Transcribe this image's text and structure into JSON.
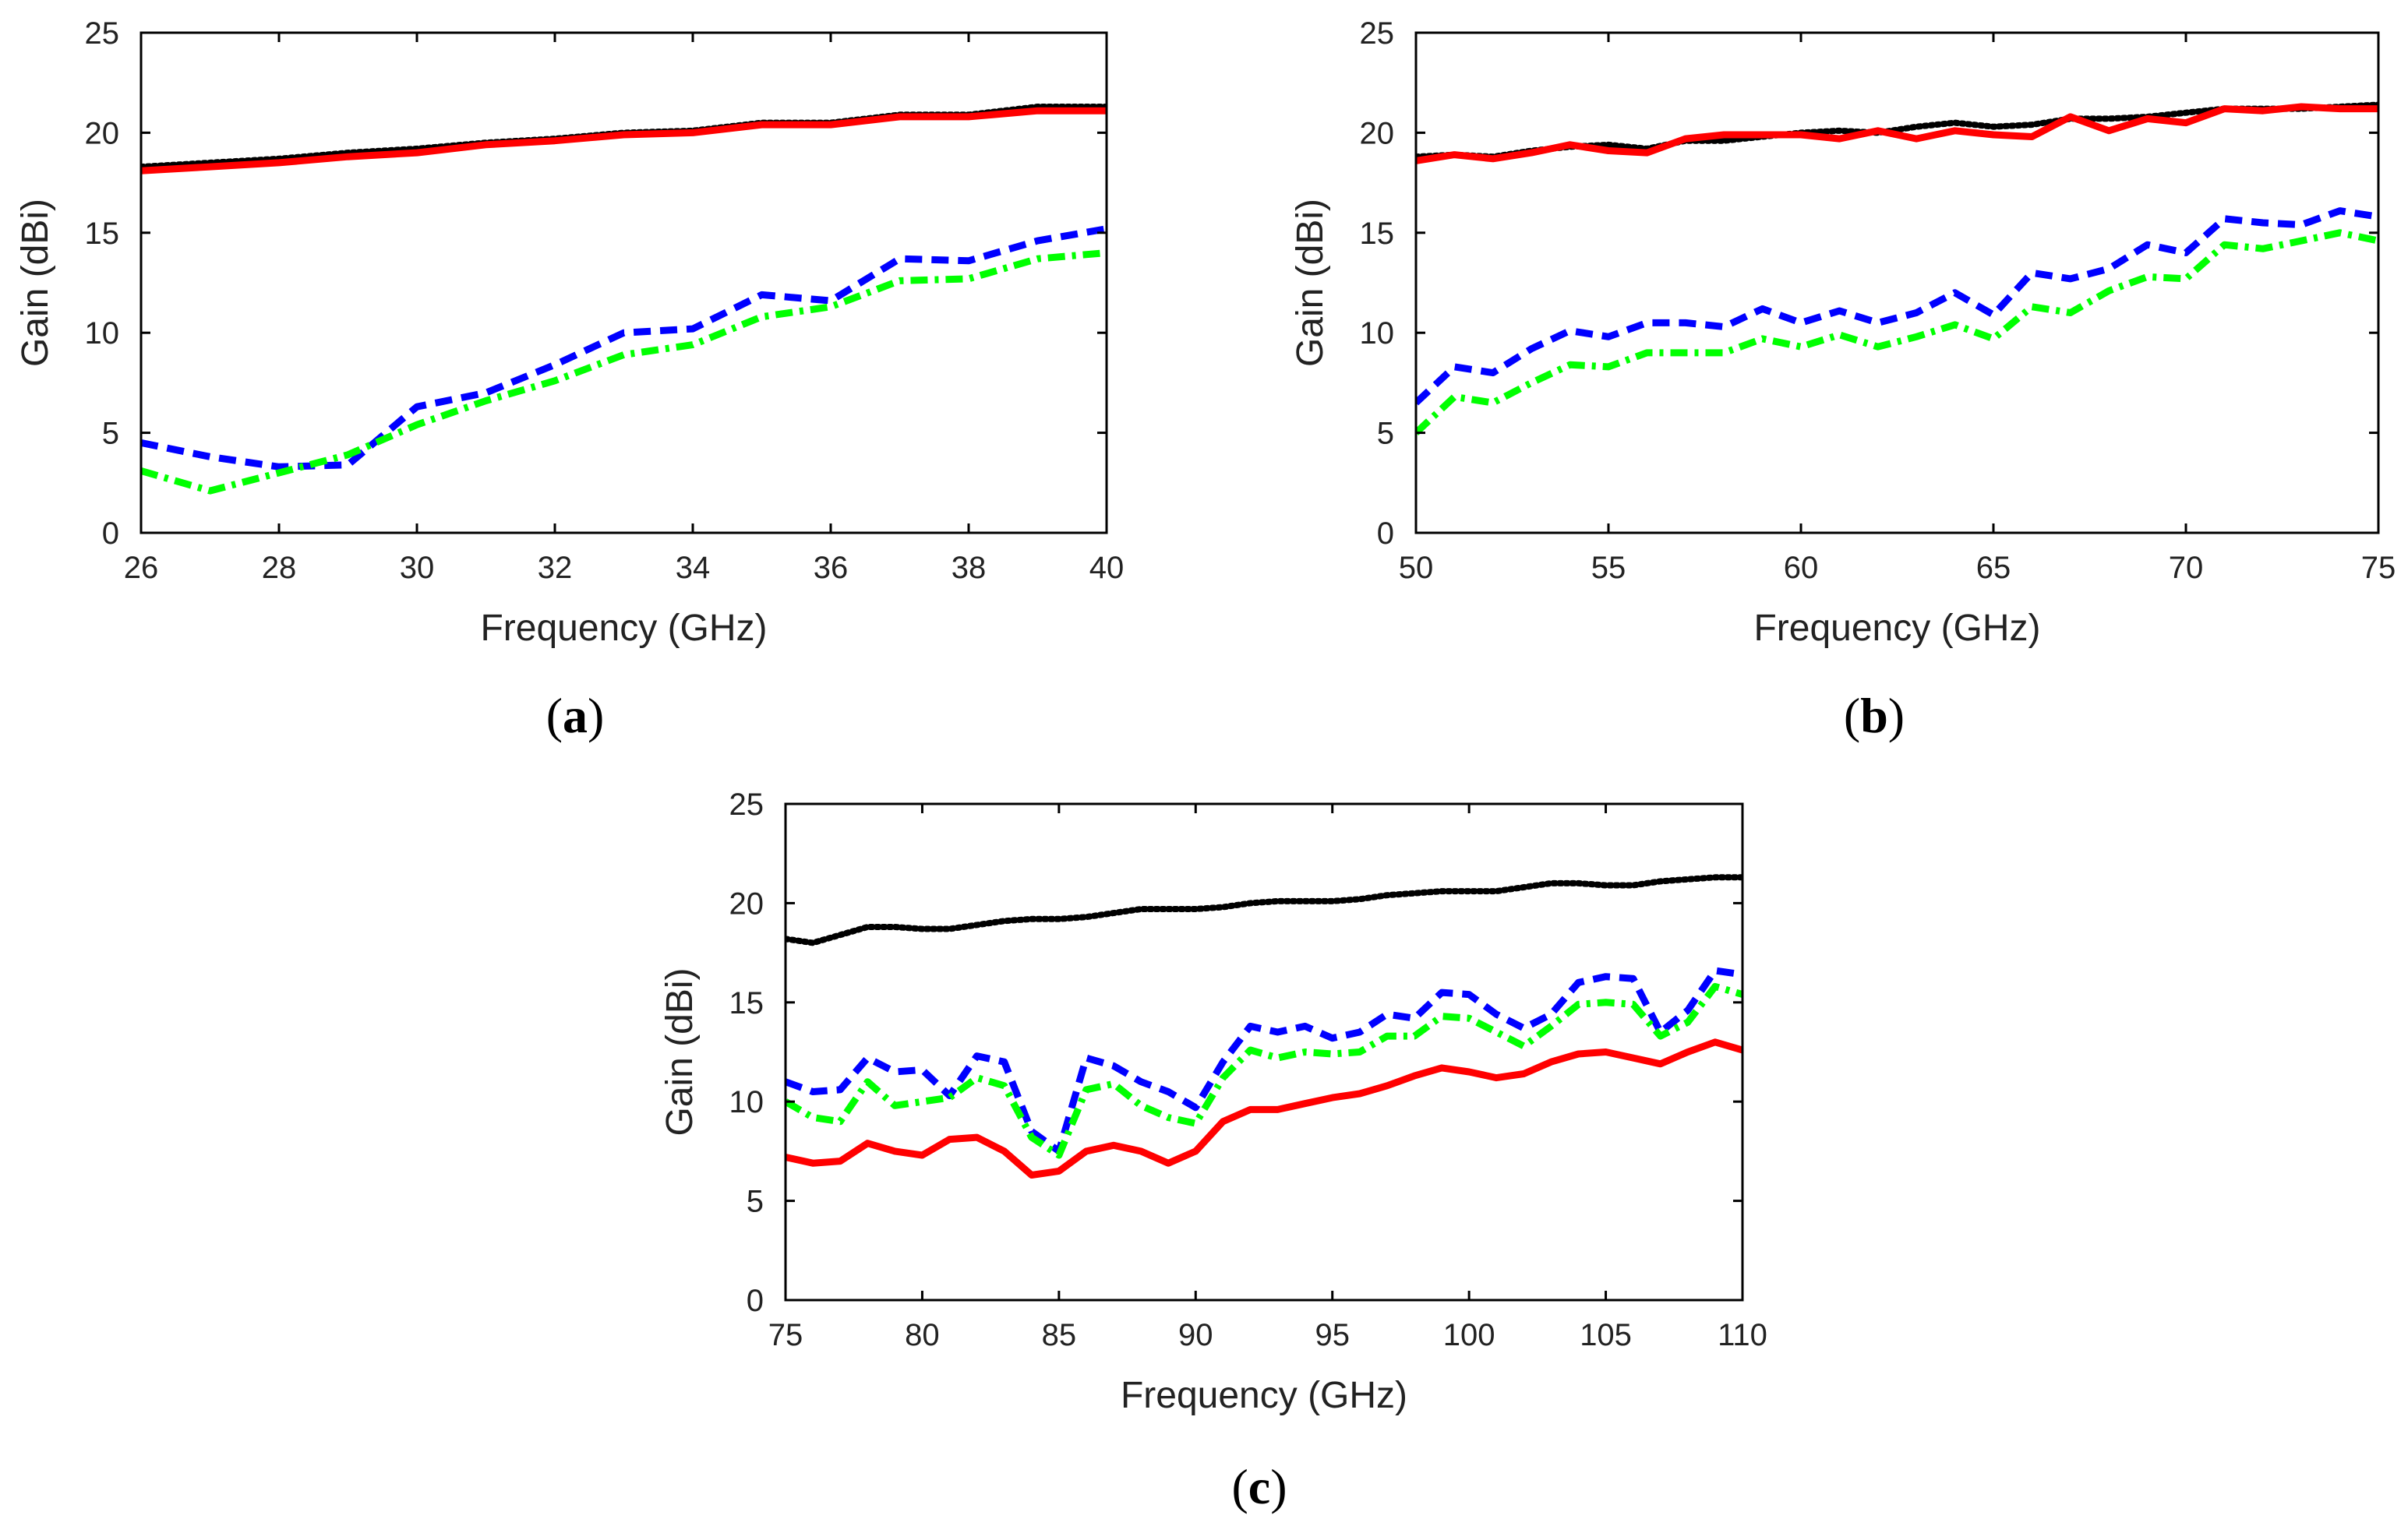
{
  "chart_data": [
    {
      "type": "line",
      "panel_label": "a",
      "xlabel": "Frequency (GHz)",
      "ylabel": "Gain (dBi)",
      "xlim": [
        26,
        40
      ],
      "ylim": [
        0,
        25
      ],
      "xticks": [
        26,
        28,
        30,
        32,
        34,
        36,
        38,
        40
      ],
      "yticks": [
        0,
        5,
        10,
        15,
        20,
        25
      ],
      "grid": false,
      "series": [
        {
          "name": "black-dotted",
          "color": "#000000",
          "dash": "dotted",
          "x": [
            26,
            27,
            28,
            29,
            30,
            31,
            32,
            33,
            34,
            35,
            36,
            37,
            38,
            39,
            40
          ],
          "y": [
            18.3,
            18.5,
            18.7,
            19.0,
            19.2,
            19.5,
            19.7,
            20.0,
            20.1,
            20.5,
            20.5,
            20.9,
            20.9,
            21.3,
            21.3
          ]
        },
        {
          "name": "red-solid",
          "color": "#ff0000",
          "dash": "solid",
          "x": [
            26,
            27,
            28,
            29,
            30,
            31,
            32,
            33,
            34,
            35,
            36,
            37,
            38,
            39,
            40
          ],
          "y": [
            18.1,
            18.3,
            18.5,
            18.8,
            19.0,
            19.4,
            19.6,
            19.9,
            20.0,
            20.4,
            20.4,
            20.8,
            20.8,
            21.1,
            21.1
          ]
        },
        {
          "name": "blue-dashed",
          "color": "#0000ff",
          "dash": "dashed",
          "x": [
            26,
            27,
            28,
            29,
            30,
            31,
            32,
            33,
            34,
            35,
            36,
            37,
            38,
            39,
            40
          ],
          "y": [
            4.5,
            3.8,
            3.3,
            3.4,
            6.3,
            7.0,
            8.4,
            10.0,
            10.2,
            11.9,
            11.6,
            13.7,
            13.6,
            14.6,
            15.2
          ]
        },
        {
          "name": "green-dashdot",
          "color": "#00ff00",
          "dash": "dashdot",
          "x": [
            26,
            27,
            28,
            29,
            30,
            31,
            32,
            33,
            34,
            35,
            36,
            37,
            38,
            39,
            40
          ],
          "y": [
            3.1,
            2.1,
            3.0,
            3.9,
            5.4,
            6.6,
            7.6,
            8.9,
            9.4,
            10.8,
            11.3,
            12.6,
            12.7,
            13.7,
            14.0
          ]
        }
      ]
    },
    {
      "type": "line",
      "panel_label": "b",
      "xlabel": "Frequency (GHz)",
      "ylabel": "Gain (dBi)",
      "xlim": [
        50,
        75
      ],
      "ylim": [
        0,
        25
      ],
      "xticks": [
        50,
        55,
        60,
        65,
        70,
        75
      ],
      "yticks": [
        0,
        5,
        10,
        15,
        20,
        25
      ],
      "grid": false,
      "series": [
        {
          "name": "black-dotted",
          "color": "#000000",
          "dash": "dotted",
          "x": [
            50,
            51,
            52,
            53,
            54,
            55,
            56,
            57,
            58,
            59,
            60,
            61,
            62,
            63,
            64,
            65,
            66,
            67,
            68,
            69,
            70,
            71,
            72,
            73,
            74,
            75
          ],
          "y": [
            18.8,
            18.9,
            18.8,
            19.1,
            19.3,
            19.4,
            19.2,
            19.6,
            19.6,
            19.8,
            20.0,
            20.1,
            20.0,
            20.3,
            20.5,
            20.3,
            20.4,
            20.7,
            20.7,
            20.8,
            21.0,
            21.2,
            21.2,
            21.2,
            21.3,
            21.4
          ]
        },
        {
          "name": "red-solid",
          "color": "#ff0000",
          "dash": "solid",
          "x": [
            50,
            51,
            52,
            53,
            54,
            55,
            56,
            57,
            58,
            59,
            60,
            61,
            62,
            63,
            64,
            65,
            66,
            67,
            68,
            69,
            70,
            71,
            72,
            73,
            74,
            75
          ],
          "y": [
            18.6,
            18.9,
            18.7,
            19.0,
            19.4,
            19.1,
            19.0,
            19.7,
            19.9,
            19.9,
            19.9,
            19.7,
            20.1,
            19.7,
            20.1,
            19.9,
            19.8,
            20.8,
            20.1,
            20.7,
            20.5,
            21.2,
            21.1,
            21.3,
            21.2,
            21.2
          ]
        },
        {
          "name": "blue-dashed",
          "color": "#0000ff",
          "dash": "dashed",
          "x": [
            50,
            51,
            52,
            53,
            54,
            55,
            56,
            57,
            58,
            59,
            60,
            61,
            62,
            63,
            64,
            65,
            66,
            67,
            68,
            69,
            70,
            71,
            72,
            73,
            74,
            75
          ],
          "y": [
            6.5,
            8.3,
            8.0,
            9.2,
            10.1,
            9.8,
            10.5,
            10.5,
            10.3,
            11.2,
            10.5,
            11.1,
            10.5,
            11.0,
            12.0,
            10.9,
            13.0,
            12.7,
            13.2,
            14.4,
            14.0,
            15.7,
            15.5,
            15.4,
            16.1,
            15.8
          ]
        },
        {
          "name": "green-dashdot",
          "color": "#00ff00",
          "dash": "dashdot",
          "x": [
            50,
            51,
            52,
            53,
            54,
            55,
            56,
            57,
            58,
            59,
            60,
            61,
            62,
            63,
            64,
            65,
            66,
            67,
            68,
            69,
            70,
            71,
            72,
            73,
            74,
            75
          ],
          "y": [
            5.0,
            6.8,
            6.5,
            7.5,
            8.4,
            8.3,
            9.0,
            9.0,
            9.0,
            9.7,
            9.3,
            9.9,
            9.3,
            9.8,
            10.4,
            9.7,
            11.3,
            11.0,
            12.1,
            12.8,
            12.7,
            14.4,
            14.2,
            14.6,
            15.0,
            14.6
          ]
        }
      ]
    },
    {
      "type": "line",
      "panel_label": "c",
      "xlabel": "Frequency (GHz)",
      "ylabel": "Gain (dBi)",
      "xlim": [
        75,
        110
      ],
      "ylim": [
        0,
        25
      ],
      "xticks": [
        75,
        80,
        85,
        90,
        95,
        100,
        105,
        110
      ],
      "yticks": [
        0,
        5,
        10,
        15,
        20,
        25
      ],
      "grid": false,
      "series": [
        {
          "name": "black-dotted",
          "color": "#000000",
          "dash": "dotted",
          "x": [
            75,
            76,
            77,
            78,
            79,
            80,
            81,
            82,
            83,
            84,
            85,
            86,
            87,
            88,
            89,
            90,
            91,
            92,
            93,
            94,
            95,
            96,
            97,
            98,
            99,
            100,
            101,
            102,
            103,
            104,
            105,
            106,
            107,
            108,
            109,
            110
          ],
          "y": [
            18.2,
            18.0,
            18.4,
            18.8,
            18.8,
            18.7,
            18.7,
            18.9,
            19.1,
            19.2,
            19.2,
            19.3,
            19.5,
            19.7,
            19.7,
            19.7,
            19.8,
            20.0,
            20.1,
            20.1,
            20.1,
            20.2,
            20.4,
            20.5,
            20.6,
            20.6,
            20.6,
            20.8,
            21.0,
            21.0,
            20.9,
            20.9,
            21.1,
            21.2,
            21.3,
            21.3
          ]
        },
        {
          "name": "red-solid",
          "color": "#ff0000",
          "dash": "solid",
          "x": [
            75,
            76,
            77,
            78,
            79,
            80,
            81,
            82,
            83,
            84,
            85,
            86,
            87,
            88,
            89,
            90,
            91,
            92,
            93,
            94,
            95,
            96,
            97,
            98,
            99,
            100,
            101,
            102,
            103,
            104,
            105,
            106,
            107,
            108,
            109,
            110
          ],
          "y": [
            7.2,
            6.9,
            7.0,
            7.9,
            7.5,
            7.3,
            8.1,
            8.2,
            7.5,
            6.3,
            6.5,
            7.5,
            7.8,
            7.5,
            6.9,
            7.5,
            9.0,
            9.6,
            9.6,
            9.9,
            10.2,
            10.4,
            10.8,
            11.3,
            11.7,
            11.5,
            11.2,
            11.4,
            12.0,
            12.4,
            12.5,
            12.2,
            11.9,
            12.5,
            13.0,
            12.6
          ]
        },
        {
          "name": "blue-dashed",
          "color": "#0000ff",
          "dash": "dashed",
          "x": [
            75,
            76,
            77,
            78,
            79,
            80,
            81,
            82,
            83,
            84,
            85,
            86,
            87,
            88,
            89,
            90,
            91,
            92,
            93,
            94,
            95,
            96,
            97,
            98,
            99,
            100,
            101,
            102,
            103,
            104,
            105,
            106,
            107,
            108,
            109,
            110
          ],
          "y": [
            11.0,
            10.5,
            10.6,
            12.2,
            11.5,
            11.6,
            10.3,
            12.3,
            12.0,
            8.5,
            7.5,
            12.2,
            11.8,
            11.0,
            10.5,
            9.7,
            12.0,
            13.8,
            13.5,
            13.8,
            13.2,
            13.5,
            14.4,
            14.2,
            15.5,
            15.4,
            14.4,
            13.7,
            14.4,
            16.0,
            16.3,
            16.2,
            13.5,
            14.6,
            16.6,
            16.4
          ]
        },
        {
          "name": "green-dashdot",
          "color": "#00ff00",
          "dash": "dashdot",
          "x": [
            75,
            76,
            77,
            78,
            79,
            80,
            81,
            82,
            83,
            84,
            85,
            86,
            87,
            88,
            89,
            90,
            91,
            92,
            93,
            94,
            95,
            96,
            97,
            98,
            99,
            100,
            101,
            102,
            103,
            104,
            105,
            106,
            107,
            108,
            109,
            110
          ],
          "y": [
            10.0,
            9.2,
            9.0,
            11.0,
            9.8,
            10.0,
            10.2,
            11.2,
            10.8,
            8.2,
            7.3,
            10.6,
            10.9,
            9.8,
            9.2,
            8.9,
            11.2,
            12.6,
            12.2,
            12.5,
            12.4,
            12.5,
            13.3,
            13.3,
            14.3,
            14.2,
            13.5,
            12.8,
            13.8,
            14.9,
            15.0,
            14.9,
            13.3,
            14.0,
            15.8,
            15.4
          ]
        }
      ]
    }
  ]
}
